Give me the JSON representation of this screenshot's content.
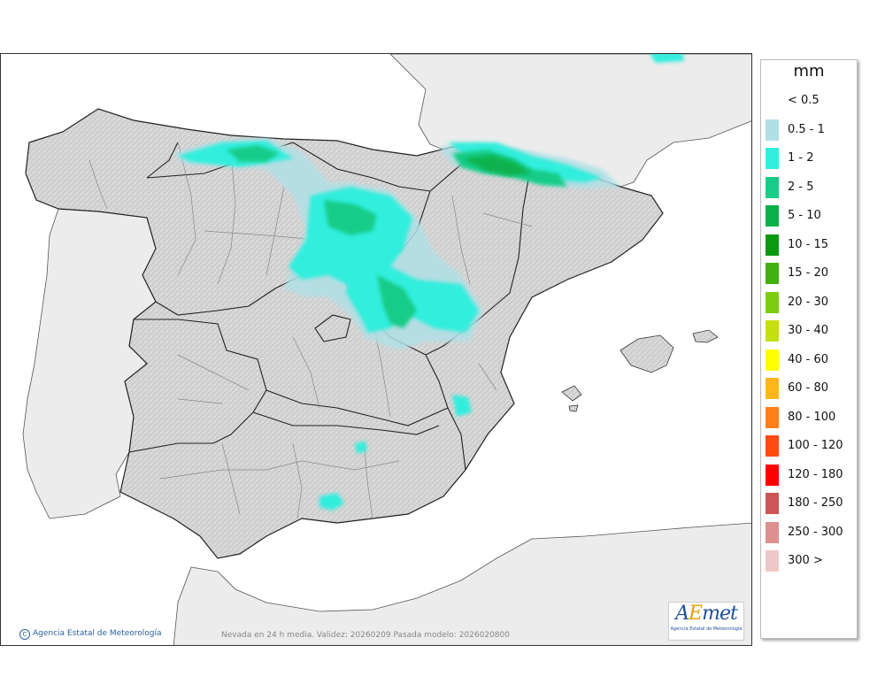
{
  "legend": {
    "unit": "mm",
    "classes": [
      {
        "label": "< 0.5",
        "color": "#ffffff"
      },
      {
        "label": "0.5 - 1",
        "color": "#b0e0e6"
      },
      {
        "label": "1 - 2",
        "color": "#33eedd"
      },
      {
        "label": "2 - 5",
        "color": "#19cc88"
      },
      {
        "label": "5 - 10",
        "color": "#0ab04a"
      },
      {
        "label": "10 - 15",
        "color": "#0a9a10"
      },
      {
        "label": "15 - 20",
        "color": "#42b010"
      },
      {
        "label": "20 - 30",
        "color": "#7ccc10"
      },
      {
        "label": "30 - 40",
        "color": "#c4e010"
      },
      {
        "label": "40 - 60",
        "color": "#ffff00"
      },
      {
        "label": "60 - 80",
        "color": "#ffb61a"
      },
      {
        "label": "80 - 100",
        "color": "#ff7f1a"
      },
      {
        "label": "100 - 120",
        "color": "#ff4a10"
      },
      {
        "label": "120 - 180",
        "color": "#ff0000"
      },
      {
        "label": "180 - 250",
        "color": "#cc5555"
      },
      {
        "label": "250 - 300",
        "color": "#dd9090"
      },
      {
        "label": "300 >",
        "color": "#eec8c8"
      }
    ]
  },
  "caption": "Nevada en 24 h media. Validez: 20260209 Pasada modelo: 2026020800",
  "copyright": "Agencia Estatal de Meteorología",
  "logo": {
    "mark_a": "A",
    "mark_e": "E",
    "mark_rest": "met",
    "subtitle": "Agencia Estatal de Meteorología"
  },
  "colors": {
    "sea": "#ffffff",
    "land_foreign": "#ececec",
    "land_spain": "#d9d9d9",
    "border": "#222222"
  }
}
